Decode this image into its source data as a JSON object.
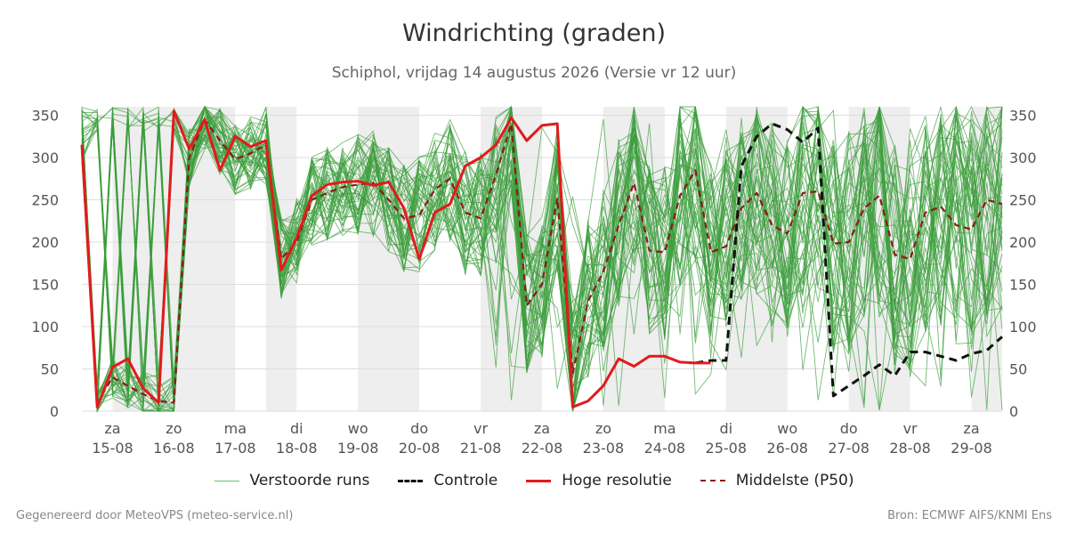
{
  "title": "Windrichting (graden)",
  "subtitle": "Schiphol, vrijdag 14 augustus 2026 (Versie vr 12 uur)",
  "footer": {
    "left": "Gegenereerd door MeteoVPS (meteo-service.nl)",
    "right": "Bron: ECMWF AIFS/KNMI Ens"
  },
  "legend": {
    "perturbed": "Verstoorde runs",
    "control": "Controle",
    "hires": "Hoge resolutie",
    "median": "Middelste (P50)"
  },
  "colors": {
    "perturbed": "#3a9d3a",
    "control": "#111111",
    "hires": "#e31a1c",
    "median": "#8b1a1a",
    "weekend_shade": "#eeeeee",
    "grid": "#dddddd"
  },
  "chart_data": {
    "type": "line",
    "title": "Windrichting (graden)",
    "y_range": [
      0,
      360
    ],
    "y_ticks": [
      0,
      50,
      100,
      150,
      200,
      250,
      300,
      350
    ],
    "x_range_days": [
      14.5,
      29.5
    ],
    "x_ticks": [
      {
        "day": 15,
        "weekday": "za",
        "date": "15-08"
      },
      {
        "day": 16,
        "weekday": "zo",
        "date": "16-08"
      },
      {
        "day": 17,
        "weekday": "ma",
        "date": "17-08"
      },
      {
        "day": 18,
        "weekday": "di",
        "date": "18-08"
      },
      {
        "day": 19,
        "weekday": "wo",
        "date": "19-08"
      },
      {
        "day": 20,
        "weekday": "do",
        "date": "20-08"
      },
      {
        "day": 21,
        "weekday": "vr",
        "date": "21-08"
      },
      {
        "day": 22,
        "weekday": "za",
        "date": "22-08"
      },
      {
        "day": 23,
        "weekday": "zo",
        "date": "23-08"
      },
      {
        "day": 24,
        "weekday": "ma",
        "date": "24-08"
      },
      {
        "day": 25,
        "weekday": "di",
        "date": "25-08"
      },
      {
        "day": 26,
        "weekday": "wo",
        "date": "26-08"
      },
      {
        "day": 27,
        "weekday": "do",
        "date": "27-08"
      },
      {
        "day": 28,
        "weekday": "vr",
        "date": "28-08"
      },
      {
        "day": 29,
        "weekday": "za",
        "date": "29-08"
      }
    ],
    "shaded_bands_days": [
      [
        15,
        16
      ],
      [
        16,
        17
      ],
      [
        17.5,
        18
      ],
      [
        19,
        20
      ],
      [
        21,
        22
      ],
      [
        23,
        24
      ],
      [
        25,
        26
      ],
      [
        27,
        28
      ],
      [
        29,
        29.5
      ]
    ],
    "series": [
      {
        "name": "Hoge resolutie",
        "x": [
          14.5,
          14.75,
          15.0,
          15.25,
          15.5,
          15.75,
          16.0,
          16.25,
          16.5,
          16.75,
          17.0,
          17.25,
          17.5,
          17.75,
          18.0,
          18.25,
          18.5,
          18.75,
          19.0,
          19.25,
          19.5,
          19.75,
          20.0,
          20.25,
          20.5,
          20.75,
          21.0,
          21.25,
          21.5,
          21.75,
          22.0,
          22.25,
          22.5,
          22.75,
          23.0,
          23.25,
          23.5,
          23.75,
          24.0,
          24.25,
          24.5,
          24.75
        ],
        "values": [
          315,
          5,
          52,
          62,
          27,
          10,
          355,
          310,
          345,
          285,
          325,
          313,
          320,
          167,
          205,
          255,
          268,
          271,
          272,
          267,
          271,
          240,
          180,
          235,
          245,
          290,
          300,
          315,
          347,
          320,
          338,
          340,
          5,
          12,
          30,
          62,
          53,
          65,
          65,
          58,
          57,
          57
        ]
      },
      {
        "name": "Controle",
        "x": [
          24.5,
          24.75,
          25.0,
          25.25,
          25.5,
          25.75,
          26.0,
          26.25,
          26.5,
          26.75,
          27.0,
          27.25,
          27.5,
          27.75,
          28.0,
          28.25,
          28.5,
          28.75,
          29.0,
          29.25,
          29.5
        ],
        "values": [
          57,
          60,
          60,
          290,
          325,
          340,
          333,
          318,
          335,
          18,
          30,
          42,
          55,
          42,
          70,
          70,
          65,
          60,
          68,
          72,
          88
        ]
      },
      {
        "name": "Middelste (P50)",
        "x": [
          14.5,
          14.75,
          15.0,
          15.25,
          15.5,
          15.75,
          16.0,
          16.25,
          16.5,
          16.75,
          17.0,
          17.25,
          17.5,
          17.75,
          18.0,
          18.25,
          18.5,
          18.75,
          19.0,
          19.25,
          19.5,
          19.75,
          20.0,
          20.25,
          20.5,
          20.75,
          21.0,
          21.25,
          21.5,
          21.75,
          22.0,
          22.25,
          22.5,
          22.75,
          23.0,
          23.25,
          23.5,
          23.75,
          24.0,
          24.25,
          24.5,
          24.75,
          25.0,
          25.25,
          25.5,
          25.75,
          26.0,
          26.25,
          26.5,
          26.75,
          27.0,
          27.25,
          27.5,
          27.75,
          28.0,
          28.25,
          28.5,
          28.75,
          29.0,
          29.25,
          29.5
        ],
        "values": [
          315,
          10,
          40,
          30,
          20,
          12,
          10,
          300,
          345,
          320,
          298,
          305,
          315,
          180,
          200,
          250,
          258,
          265,
          268,
          270,
          250,
          228,
          232,
          262,
          275,
          235,
          228,
          280,
          340,
          125,
          150,
          252,
          45,
          130,
          165,
          220,
          270,
          190,
          188,
          255,
          285,
          188,
          195,
          240,
          258,
          220,
          210,
          258,
          260,
          198,
          200,
          240,
          255,
          185,
          180,
          235,
          242,
          220,
          215,
          250,
          245
        ]
      }
    ],
    "perturbed_runs_note": "50 perturbed ensemble members drawn as thin green lines spanning 0-360"
  }
}
